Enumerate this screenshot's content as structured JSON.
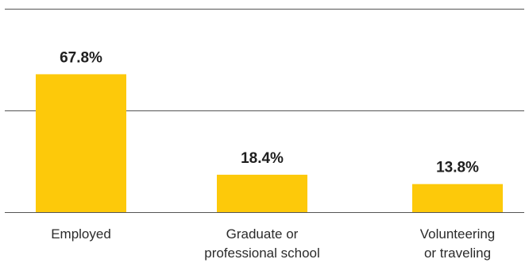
{
  "chart_data": {
    "type": "bar",
    "categories": [
      [
        "Employed"
      ],
      [
        "Graduate or",
        "professional school"
      ],
      [
        "Volunteering",
        "or traveling"
      ]
    ],
    "values": [
      67.8,
      18.4,
      13.8
    ],
    "value_labels": [
      "67.8%",
      "18.4%",
      "13.8%"
    ],
    "title": "",
    "xlabel": "",
    "ylabel": "",
    "ylim": [
      0,
      100
    ],
    "gridlines": [
      0,
      50,
      100
    ],
    "grid": true,
    "legend": "none",
    "bar_color": "#FDC90A",
    "grid_color": "#555555",
    "text_color": "#1f1f1f"
  }
}
